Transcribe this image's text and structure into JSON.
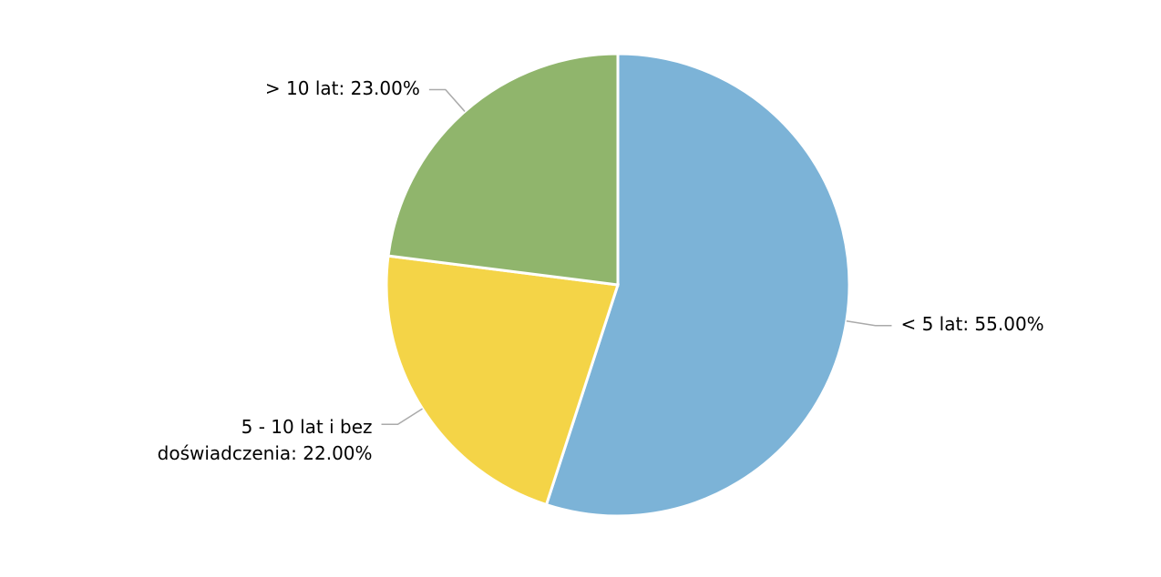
{
  "chart_data": {
    "type": "pie",
    "values": [
      55,
      22,
      23
    ],
    "value_labels": [
      "< 5 lat: 55.00%",
      "5 - 10 lat i bez doświadczenia: 22.00%",
      "> 10 lat: 23.00%"
    ],
    "colors": [
      "#7cb3d7",
      "#f4d447",
      "#90b56c"
    ]
  }
}
